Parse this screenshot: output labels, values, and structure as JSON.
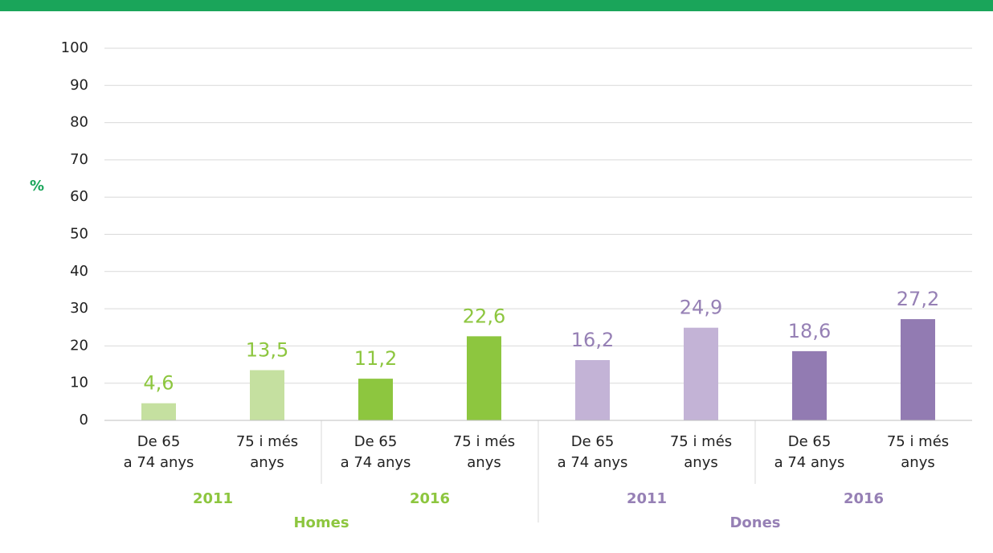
{
  "chart_data": {
    "type": "bar",
    "y_label": "%",
    "ylim": [
      0,
      100
    ],
    "yticks": [
      0,
      10,
      20,
      30,
      40,
      50,
      60,
      70,
      80,
      90,
      100
    ],
    "grid": true,
    "groups": [
      {
        "name": "Homes",
        "color": "#8dc63f",
        "subgroups": [
          {
            "name": "2011",
            "color": "#c5e0a0",
            "categories": [
              [
                "De 65",
                "a 74 anys"
              ],
              [
                "75 i més",
                "anys"
              ]
            ],
            "values": [
              4.6,
              13.5
            ],
            "value_labels": [
              "4,6",
              "13,5"
            ]
          },
          {
            "name": "2016",
            "color": "#8dc63f",
            "categories": [
              [
                "De 65",
                "a 74 anys"
              ],
              [
                "75 i més",
                "anys"
              ]
            ],
            "values": [
              11.2,
              22.6
            ],
            "value_labels": [
              "11,2",
              "22,6"
            ]
          }
        ]
      },
      {
        "name": "Dones",
        "color": "#9680b5",
        "subgroups": [
          {
            "name": "2011",
            "color": "#c3b3d6",
            "categories": [
              [
                "De 65",
                "a 74 anys"
              ],
              [
                "75 i més",
                "anys"
              ]
            ],
            "values": [
              16.2,
              24.9
            ],
            "value_labels": [
              "16,2",
              "24,9"
            ]
          },
          {
            "name": "2016",
            "color": "#927bb2",
            "categories": [
              [
                "De 65",
                "a 74 anys"
              ],
              [
                "75 i més",
                "anys"
              ]
            ],
            "values": [
              18.6,
              27.2
            ],
            "value_labels": [
              "18,6",
              "27,2"
            ]
          }
        ]
      }
    ]
  }
}
